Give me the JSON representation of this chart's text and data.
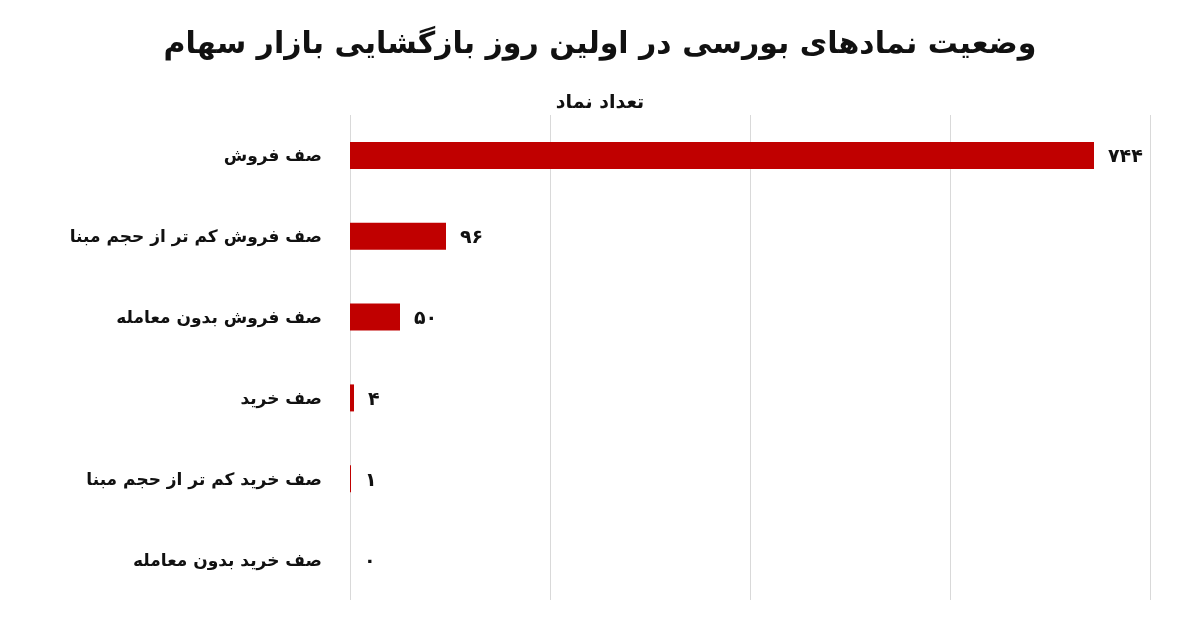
{
  "chart_data": {
    "type": "bar",
    "orientation": "horizontal",
    "title": "وضعیت نمادهای بورسی در اولین روز بازگشایی بازار سهام",
    "subtitle": "تعداد نماد",
    "categories": [
      "صف فروش",
      "صف فروش کم تر از حجم مبنا",
      "صف فروش بدون معامله",
      "صف خرید",
      "صف خرید کم تر از حجم مبنا",
      "صف خرید بدون معامله"
    ],
    "values": [
      744,
      96,
      50,
      4,
      1,
      0
    ],
    "value_labels": [
      "۷۴۴",
      "۹۶",
      "۵۰",
      "۴",
      "۱",
      "۰"
    ],
    "color": "#c00000",
    "xlim": [
      0,
      800
    ],
    "xticks": [
      {
        "value": 0,
        "label": null
      },
      {
        "value": 200,
        "label": null
      },
      {
        "value": 400,
        "label": null
      },
      {
        "value": 600,
        "label": null
      },
      {
        "value": 800,
        "label": null
      }
    ],
    "grid": "x",
    "tick_labels": "y"
  }
}
